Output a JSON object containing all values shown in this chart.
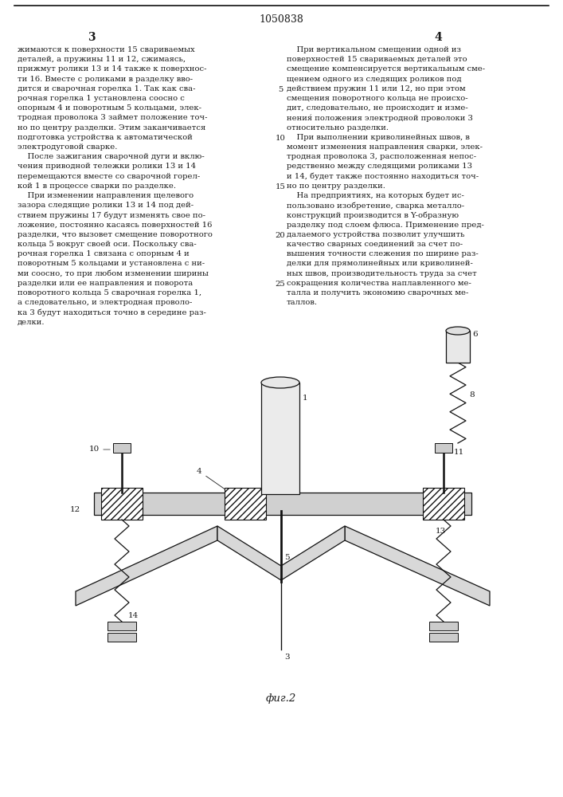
{
  "page_number": "1050838",
  "col_number_left": "3",
  "col_number_right": "4",
  "line_numbers": [
    5,
    10,
    15,
    20,
    25
  ],
  "bg_color": "#ffffff",
  "text_color": "#1a1a1a",
  "line_color": "#111111",
  "fig_label": "фиг.2"
}
